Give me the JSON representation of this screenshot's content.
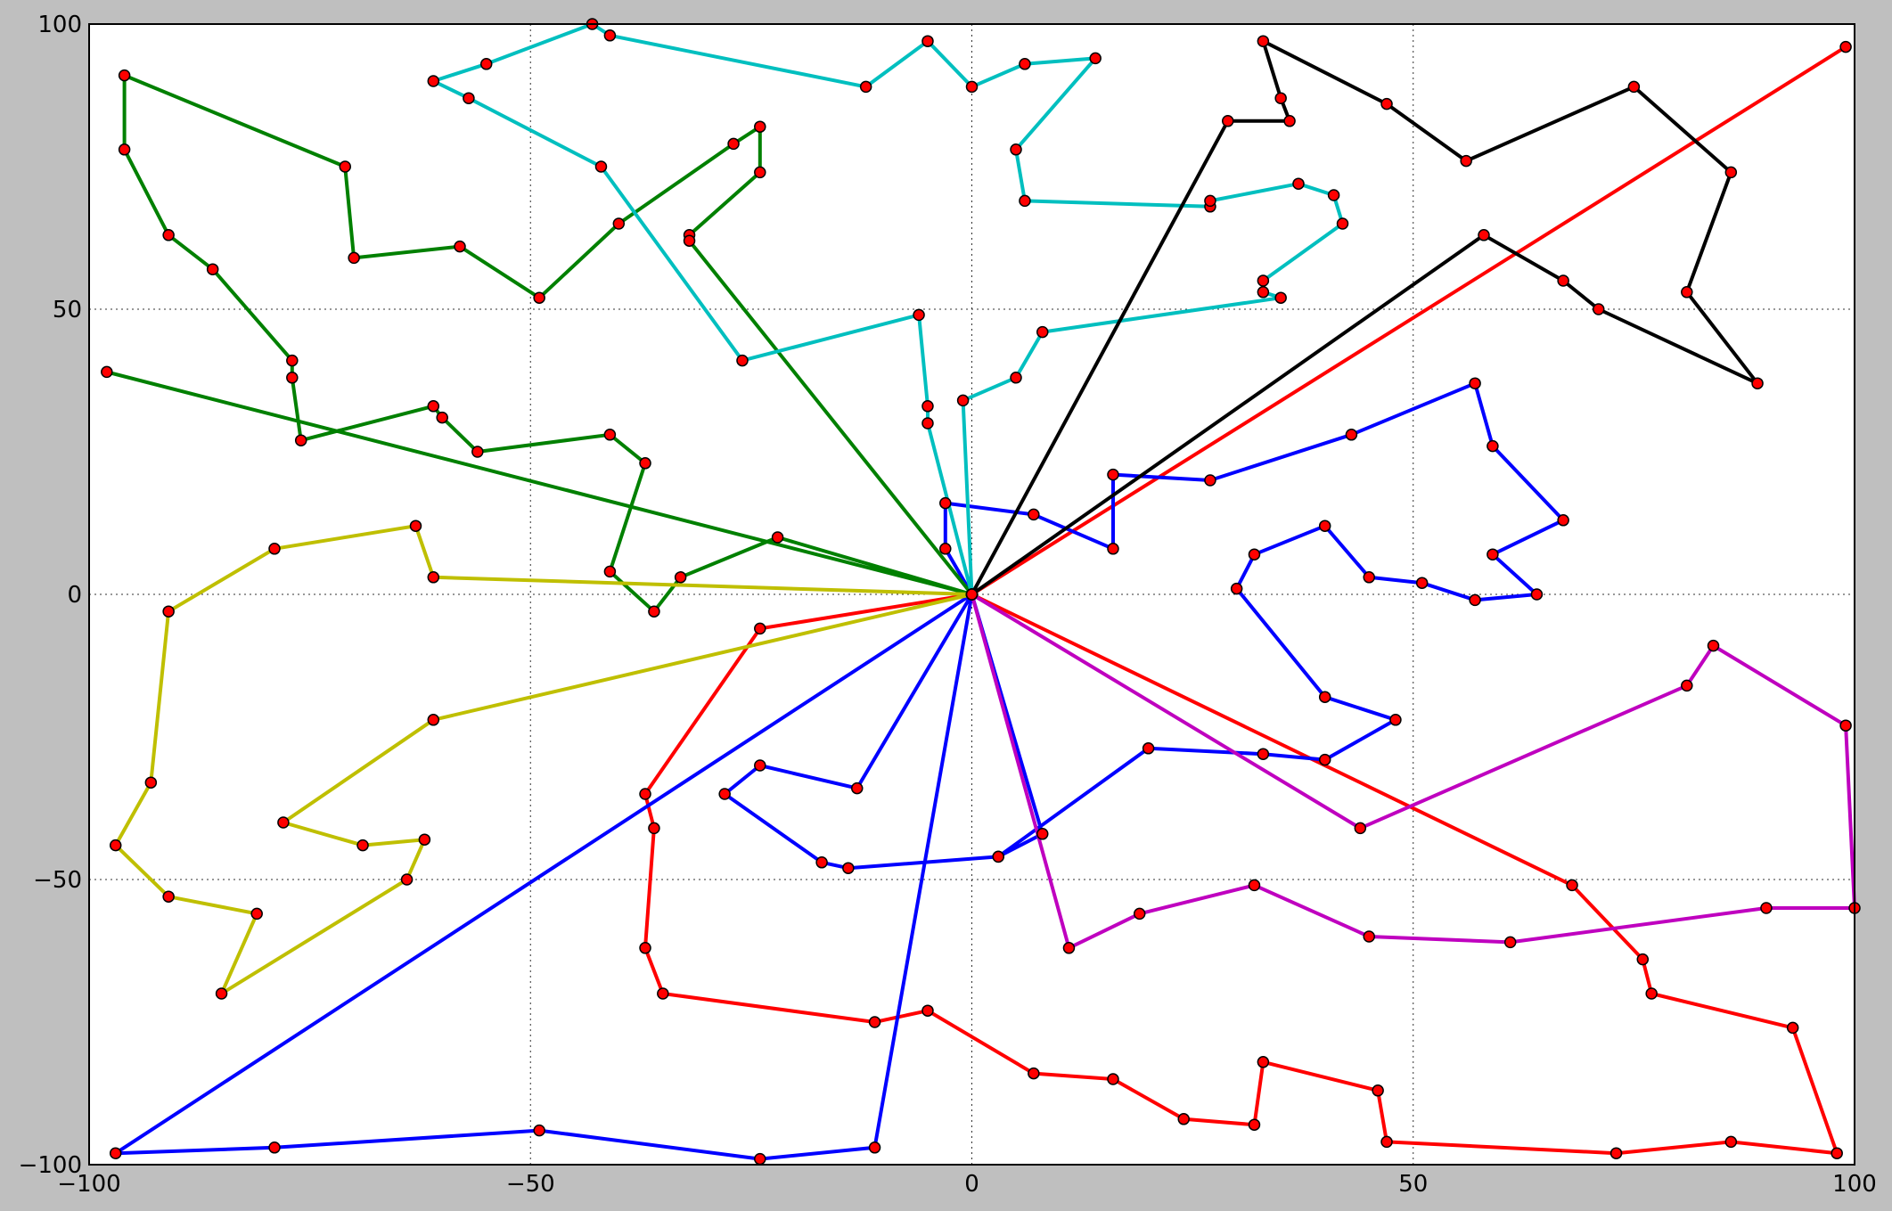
{
  "chart_data": {
    "type": "line",
    "title": "",
    "xlabel": "",
    "ylabel": "",
    "xlim": [
      -100,
      100
    ],
    "ylim": [
      -100,
      100
    ],
    "xticks": [
      -100,
      -50,
      0,
      50,
      100
    ],
    "yticks": [
      -100,
      -50,
      0,
      50,
      100
    ],
    "xtick_labels": [
      "−100",
      "−50",
      "0",
      "50",
      "100"
    ],
    "ytick_labels": [
      "−100",
      "−50",
      "0",
      "50",
      "100"
    ],
    "grid": true,
    "legend": "none",
    "point_color": "#ff0000",
    "series": [
      {
        "color": "#ff0000",
        "points": [
          [
            0,
            0
          ],
          [
            -24,
            -6
          ],
          [
            -37,
            -35
          ],
          [
            -36,
            -41
          ],
          [
            -37,
            -62
          ],
          [
            -35,
            -70
          ],
          [
            -11,
            -75
          ],
          [
            -5,
            -73
          ],
          [
            7,
            -84
          ],
          [
            16,
            -85
          ],
          [
            24,
            -92
          ],
          [
            32,
            -93
          ],
          [
            33,
            -82
          ],
          [
            46,
            -87
          ],
          [
            47,
            -96
          ],
          [
            73,
            -98
          ],
          [
            86,
            -96
          ],
          [
            98,
            -98
          ],
          [
            93,
            -76
          ],
          [
            77,
            -70
          ],
          [
            76,
            -64
          ],
          [
            68,
            -51
          ],
          [
            0,
            0
          ],
          [
            99,
            96
          ]
        ]
      },
      {
        "color": "#0000ff",
        "points": [
          [
            0,
            0
          ],
          [
            -97,
            -98
          ],
          [
            -79,
            -97
          ],
          [
            -49,
            -94
          ],
          [
            -24,
            -99
          ],
          [
            -11,
            -97
          ],
          [
            0,
            0
          ],
          [
            8,
            -42
          ],
          [
            3,
            -46
          ],
          [
            -14,
            -48
          ],
          [
            -17,
            -47
          ],
          [
            -28,
            -35
          ],
          [
            -24,
            -30
          ],
          [
            -13,
            -34
          ],
          [
            0,
            0
          ],
          [
            -3,
            8
          ],
          [
            -3,
            16
          ],
          [
            7,
            14
          ],
          [
            16,
            8
          ],
          [
            16,
            21
          ],
          [
            27,
            20
          ],
          [
            43,
            28
          ],
          [
            57,
            37
          ],
          [
            59,
            26
          ],
          [
            67,
            13
          ],
          [
            59,
            7
          ],
          [
            64,
            0
          ],
          [
            57,
            -1
          ],
          [
            51,
            2
          ],
          [
            45,
            3
          ],
          [
            40,
            12
          ],
          [
            32,
            7
          ],
          [
            30,
            1
          ],
          [
            40,
            -18
          ],
          [
            48,
            -22
          ],
          [
            40,
            -29
          ],
          [
            33,
            -28
          ],
          [
            20,
            -27
          ],
          [
            3,
            -46
          ]
        ]
      },
      {
        "color": "#008000",
        "points": [
          [
            0,
            0
          ],
          [
            -22,
            10
          ],
          [
            -33,
            3
          ],
          [
            -36,
            -3
          ],
          [
            -41,
            4
          ],
          [
            -37,
            23
          ],
          [
            -41,
            28
          ],
          [
            -56,
            25
          ],
          [
            -60,
            31
          ],
          [
            -61,
            33
          ],
          [
            -76,
            27
          ],
          [
            -77,
            38
          ],
          [
            -77,
            41
          ],
          [
            -86,
            57
          ],
          [
            -91,
            63
          ],
          [
            -96,
            78
          ],
          [
            -96,
            91
          ],
          [
            -71,
            75
          ],
          [
            -70,
            59
          ],
          [
            -58,
            61
          ],
          [
            -49,
            52
          ],
          [
            -40,
            65
          ],
          [
            -27,
            79
          ],
          [
            -24,
            82
          ],
          [
            -24,
            74
          ],
          [
            -32,
            63
          ],
          [
            -32,
            62
          ],
          [
            0,
            0
          ],
          [
            -98,
            39
          ],
          [
            0,
            0
          ]
        ]
      },
      {
        "color": "#00bfbf",
        "points": [
          [
            0,
            0
          ],
          [
            -5,
            30
          ],
          [
            -5,
            33
          ],
          [
            -6,
            49
          ],
          [
            -26,
            41
          ],
          [
            -42,
            75
          ],
          [
            -57,
            87
          ],
          [
            -61,
            90
          ],
          [
            -55,
            93
          ],
          [
            -43,
            100
          ],
          [
            -41,
            98
          ],
          [
            -12,
            89
          ],
          [
            -5,
            97
          ],
          [
            0,
            89
          ],
          [
            6,
            93
          ],
          [
            14,
            94
          ],
          [
            5,
            78
          ],
          [
            6,
            69
          ],
          [
            27,
            68
          ],
          [
            27,
            69
          ],
          [
            37,
            72
          ],
          [
            41,
            70
          ],
          [
            42,
            65
          ],
          [
            33,
            55
          ],
          [
            33,
            53
          ],
          [
            35,
            52
          ],
          [
            8,
            46
          ],
          [
            5,
            38
          ],
          [
            -1,
            34
          ],
          [
            0,
            0
          ]
        ]
      },
      {
        "color": "#000000",
        "points": [
          [
            0,
            0
          ],
          [
            29,
            83
          ],
          [
            36,
            83
          ],
          [
            35,
            87
          ],
          [
            33,
            97
          ],
          [
            47,
            86
          ],
          [
            56,
            76
          ],
          [
            75,
            89
          ],
          [
            86,
            74
          ],
          [
            81,
            53
          ],
          [
            89,
            37
          ],
          [
            71,
            50
          ],
          [
            67,
            55
          ],
          [
            58,
            63
          ],
          [
            0,
            0
          ]
        ]
      },
      {
        "color": "#bf00bf",
        "points": [
          [
            0,
            0
          ],
          [
            11,
            -62
          ],
          [
            19,
            -56
          ],
          [
            32,
            -51
          ],
          [
            45,
            -60
          ],
          [
            61,
            -61
          ],
          [
            90,
            -55
          ],
          [
            100,
            -55
          ],
          [
            99,
            -23
          ],
          [
            84,
            -9
          ],
          [
            81,
            -16
          ],
          [
            44,
            -41
          ],
          [
            0,
            0
          ]
        ]
      },
      {
        "color": "#bfbf00",
        "points": [
          [
            0,
            0
          ],
          [
            -61,
            3
          ],
          [
            -63,
            12
          ],
          [
            -79,
            8
          ],
          [
            -91,
            -3
          ],
          [
            -93,
            -33
          ],
          [
            -97,
            -44
          ],
          [
            -91,
            -53
          ],
          [
            -81,
            -56
          ],
          [
            -85,
            -70
          ],
          [
            -64,
            -50
          ],
          [
            -62,
            -43
          ],
          [
            -69,
            -44
          ],
          [
            -78,
            -40
          ],
          [
            -61,
            -22
          ],
          [
            0,
            0
          ]
        ]
      }
    ]
  }
}
